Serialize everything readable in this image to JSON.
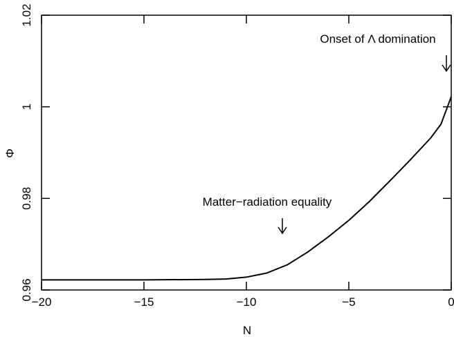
{
  "chart_data": {
    "type": "line",
    "x_label": "N",
    "y_label": "Φ",
    "annotations": [
      "Matter−radiation equality",
      "Onset of Λ domination"
    ],
    "x": [
      -20,
      -15,
      -12,
      -11,
      -10,
      -9,
      -8,
      -7,
      -6,
      -5,
      -4,
      -3,
      -2,
      -1,
      -0.5,
      0
    ],
    "series": [
      {
        "color": "#000000",
        "values": [
          0.9622,
          0.9622,
          0.9623,
          0.9624,
          0.9628,
          0.9637,
          0.9655,
          0.9683,
          0.9716,
          0.9752,
          0.9793,
          0.9838,
          0.9884,
          0.9932,
          0.9962,
          1.0022
        ]
      }
    ],
    "xlim": [
      -20,
      0
    ],
    "ylim": [
      0.96,
      1.02
    ],
    "xticks": [
      {
        "value": -20,
        "label": "−20"
      },
      {
        "value": -15,
        "label": "−15"
      },
      {
        "value": -10,
        "label": "−10"
      },
      {
        "value": -5,
        "label": "−5"
      },
      0
    ],
    "yticks": [
      0.96,
      0.98,
      1,
      1.02
    ]
  }
}
